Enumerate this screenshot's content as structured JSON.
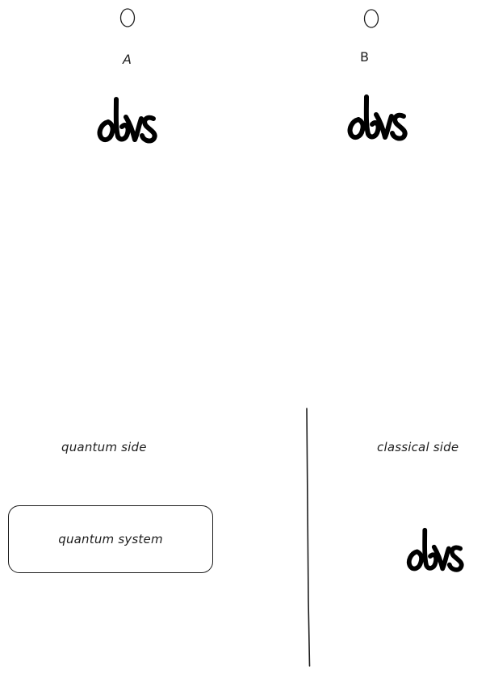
{
  "canvas": {
    "background": "#ffffff",
    "stroke_color": "#1e1e1e"
  },
  "top_parties": [
    {
      "letter": "A",
      "icon": "qubit-circle-icon",
      "obs_label": "obs"
    },
    {
      "letter": "B",
      "icon": "qubit-circle-icon",
      "obs_label": "obs"
    }
  ],
  "bottom": {
    "quantum_side_label": "quantum side",
    "classical_side_label": "classical side",
    "quantum_system_label": "quantum system",
    "classical_obs_label": "obs"
  }
}
